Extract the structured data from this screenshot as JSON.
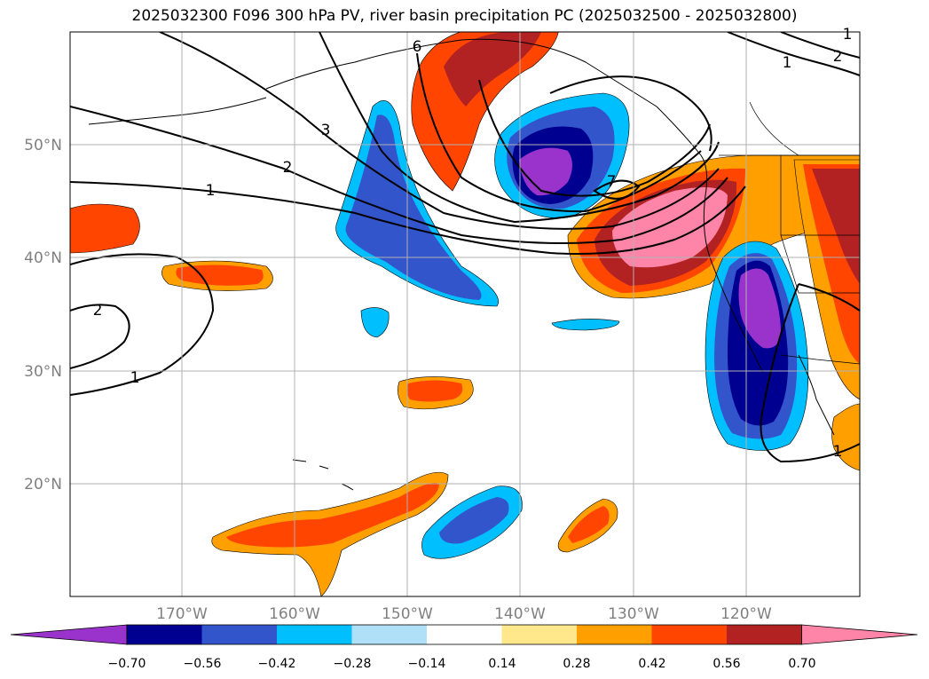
{
  "title": "2025032300 F096 300 hPa PV, river basin precipitation PC (2025032500 - 2025032800)",
  "lat_labels": [
    "50°N",
    "40°N",
    "30°N",
    "20°N"
  ],
  "lon_labels": [
    "170°W",
    "160°W",
    "150°W",
    "140°W",
    "130°W",
    "120°W"
  ],
  "contour_labels": [
    "1",
    "2",
    "3",
    "6",
    "7",
    "1",
    "2",
    "1",
    "2",
    "1",
    "1"
  ],
  "colorbar": {
    "tick_labels": [
      "−0.70",
      "−0.56",
      "−0.42",
      "−0.28",
      "−0.14",
      "0.14",
      "0.28",
      "0.42",
      "0.56",
      "0.70"
    ],
    "colors": [
      "#9933cc",
      "#000090",
      "#3355cc",
      "#00bfff",
      "#b0e0f8",
      "#ffffff",
      "#ffe88c",
      "#ff9f00",
      "#ff4500",
      "#b22222",
      "#ff85a8"
    ]
  },
  "map_extent": {
    "lon_min": -180,
    "lon_max": -110,
    "lat_min": 10,
    "lat_max": 60
  }
}
